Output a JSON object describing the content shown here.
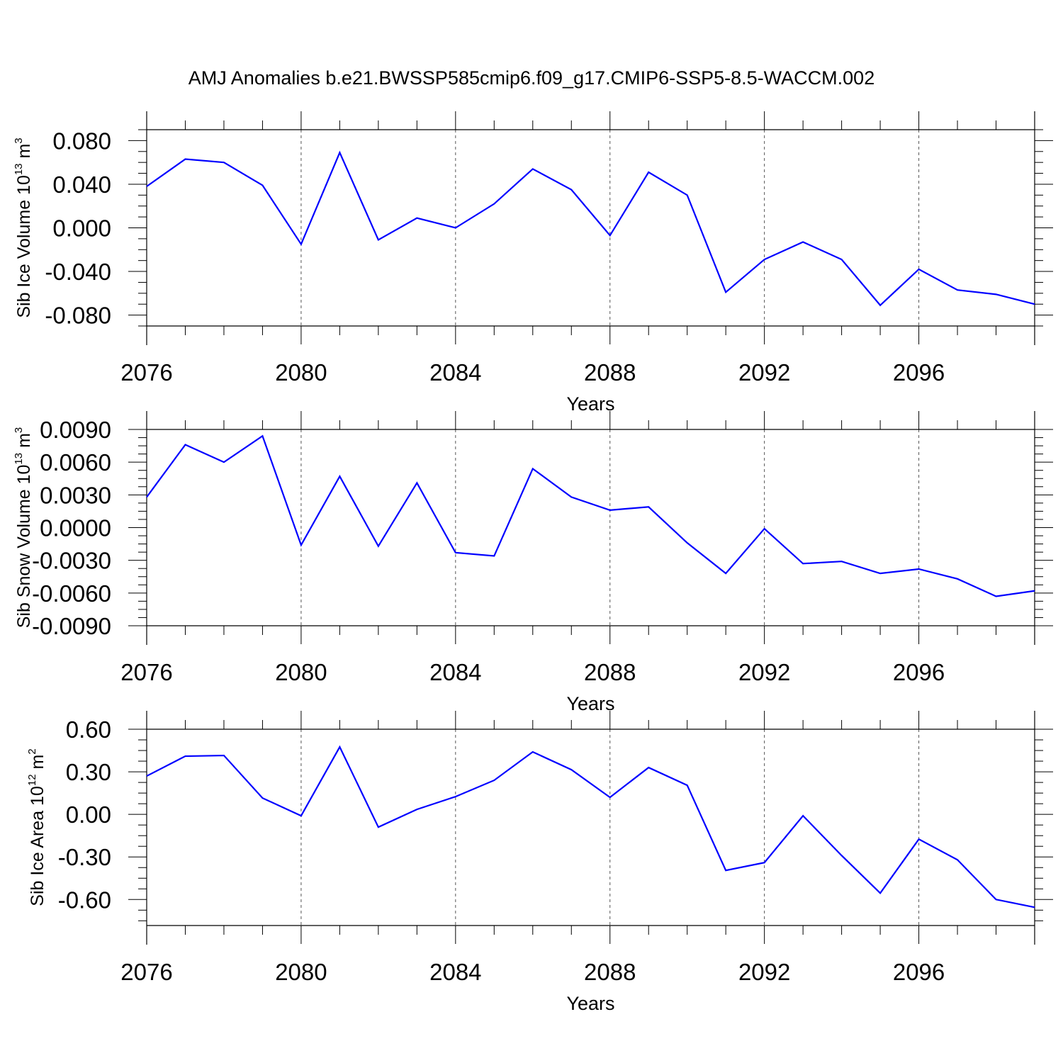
{
  "title": "AMJ Anomalies b.e21.BWSSP585cmip6.f09_g17.CMIP6-SSP5-8.5-WACCM.002",
  "colors": {
    "line": "#0000ff",
    "axis": "#000000",
    "grid": "#555555"
  },
  "chart_data": [
    {
      "type": "line",
      "ylabel": {
        "main": "Sib Ice Volume 10",
        "exp": "13",
        "unit": " m",
        "unit_exp": "3"
      },
      "xlabel": "Years",
      "xlim": [
        2076,
        2099
      ],
      "ylim": [
        -0.09,
        0.09
      ],
      "xticks": [
        2076,
        2080,
        2084,
        2088,
        2092,
        2096
      ],
      "xtick_labels": [
        "2076",
        "2080",
        "2084",
        "2088",
        "2092",
        "2096"
      ],
      "yticks": [
        -0.08,
        -0.04,
        0.0,
        0.04,
        0.08
      ],
      "ytick_labels": [
        "-0.080",
        "-0.040",
        "0.000",
        "0.040",
        "0.080"
      ],
      "vertical_grid_dashed": true,
      "series": [
        {
          "x": [
            2076,
            2077,
            2078,
            2079,
            2080,
            2081,
            2082,
            2083,
            2084,
            2085,
            2086,
            2087,
            2088,
            2089,
            2090,
            2091,
            2092,
            2093,
            2094,
            2095,
            2096,
            2097,
            2098,
            2099
          ],
          "values": [
            0.038,
            0.063,
            0.06,
            0.039,
            -0.015,
            0.069,
            -0.011,
            0.009,
            0.0,
            0.022,
            0.054,
            0.035,
            -0.007,
            0.051,
            0.03,
            -0.059,
            -0.029,
            -0.013,
            -0.029,
            -0.071,
            -0.038,
            -0.057,
            -0.061,
            -0.07
          ]
        }
      ]
    },
    {
      "type": "line",
      "ylabel": {
        "main": "Sib Snow Volume 10",
        "exp": "13",
        "unit": " m",
        "unit_exp": "3"
      },
      "xlabel": "Years",
      "xlim": [
        2076,
        2099
      ],
      "ylim": [
        -0.009,
        0.009
      ],
      "xticks": [
        2076,
        2080,
        2084,
        2088,
        2092,
        2096
      ],
      "xtick_labels": [
        "2076",
        "2080",
        "2084",
        "2088",
        "2092",
        "2096"
      ],
      "yticks": [
        -0.009,
        -0.006,
        -0.003,
        0.0,
        0.003,
        0.006,
        0.009
      ],
      "ytick_labels": [
        "-0.0090",
        "-0.0060",
        "-0.0030",
        "0.0000",
        "0.0030",
        "0.0060",
        "0.0090"
      ],
      "vertical_grid_dashed": true,
      "series": [
        {
          "x": [
            2076,
            2077,
            2078,
            2079,
            2080,
            2081,
            2082,
            2083,
            2084,
            2085,
            2086,
            2087,
            2088,
            2089,
            2090,
            2091,
            2092,
            2093,
            2094,
            2095,
            2096,
            2097,
            2098,
            2099
          ],
          "values": [
            0.0028,
            0.0076,
            0.006,
            0.0084,
            -0.0016,
            0.0047,
            -0.0017,
            0.0041,
            -0.0023,
            -0.0026,
            0.0054,
            0.0028,
            0.0016,
            0.0019,
            -0.0014,
            -0.0042,
            -0.0001,
            -0.0033,
            -0.0031,
            -0.0042,
            -0.0038,
            -0.0047,
            -0.0063,
            -0.0058
          ]
        }
      ]
    },
    {
      "type": "line",
      "ylabel": {
        "main": "Sib Ice Area 10",
        "exp": "12",
        "unit": " m",
        "unit_exp": "2"
      },
      "xlabel": "Years",
      "xlim": [
        2076,
        2099
      ],
      "ylim": [
        -0.8,
        0.6
      ],
      "xticks": [
        2076,
        2080,
        2084,
        2088,
        2092,
        2096
      ],
      "xtick_labels": [
        "2076",
        "2080",
        "2084",
        "2088",
        "2092",
        "2096"
      ],
      "yticks": [
        -0.6,
        -0.3,
        0.0,
        0.3,
        0.6
      ],
      "ytick_labels": [
        "-0.60",
        "-0.30",
        "0.00",
        "0.30",
        "0.60"
      ],
      "vertical_grid_dashed": true,
      "series": [
        {
          "x": [
            2076,
            2077,
            2078,
            2079,
            2080,
            2081,
            2082,
            2083,
            2084,
            2085,
            2086,
            2087,
            2088,
            2089,
            2090,
            2091,
            2092,
            2093,
            2094,
            2095,
            2096,
            2097,
            2098,
            2099
          ],
          "values": [
            0.27,
            0.41,
            0.415,
            0.115,
            -0.01,
            0.475,
            -0.09,
            0.035,
            0.125,
            0.24,
            0.44,
            0.315,
            0.12,
            0.33,
            0.205,
            -0.395,
            -0.34,
            -0.01,
            -0.29,
            -0.555,
            -0.175,
            -0.32,
            -0.6,
            -0.655
          ]
        }
      ]
    }
  ]
}
